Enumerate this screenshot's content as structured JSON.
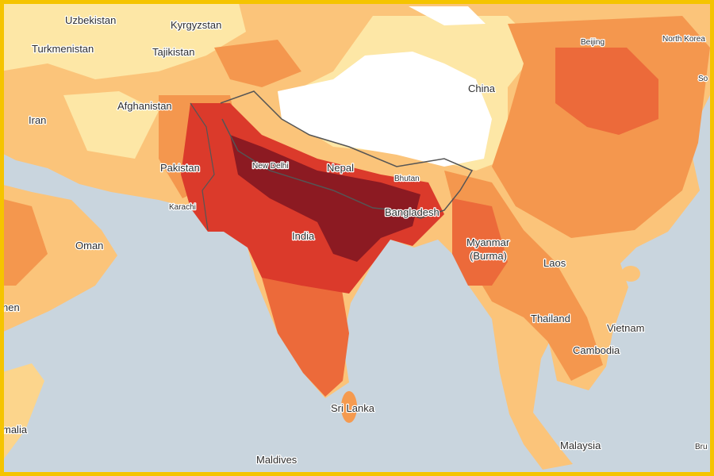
{
  "map": {
    "labels": [
      {
        "text": "Uzbekistan"
      },
      {
        "text": "Kyrgyzstan"
      },
      {
        "text": "Turkmenistan"
      },
      {
        "text": "Tajikistan"
      },
      {
        "text": "China"
      },
      {
        "text": "Beijing"
      },
      {
        "text": "North Korea"
      },
      {
        "text": "So"
      },
      {
        "text": "Afghanistan"
      },
      {
        "text": "Iran"
      },
      {
        "text": "Pakistan"
      },
      {
        "text": "New Delhi"
      },
      {
        "text": "Nepal"
      },
      {
        "text": "Bhutan"
      },
      {
        "text": "Karachi"
      },
      {
        "text": "Bangladesh"
      },
      {
        "text": "India"
      },
      {
        "text": "Oman"
      },
      {
        "text": "Myanmar"
      },
      {
        "text": "(Burma)"
      },
      {
        "text": "Laos"
      },
      {
        "text": "Thailand"
      },
      {
        "text": "Vietnam"
      },
      {
        "text": "Cambodia"
      },
      {
        "text": "Sri Lanka"
      },
      {
        "text": "Maldives"
      },
      {
        "text": "Malaysia"
      },
      {
        "text": "nen"
      },
      {
        "text": "malia"
      },
      {
        "text": "Bru"
      }
    ]
  }
}
